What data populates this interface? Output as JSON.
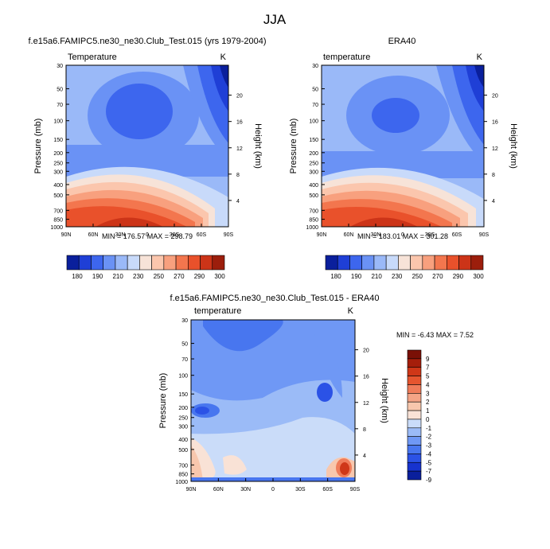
{
  "page_title": "JJA",
  "colors": {
    "temp_levels": [
      "#0a1f9c",
      "#1f3fd6",
      "#3d66ee",
      "#6a92f5",
      "#9ab9f8",
      "#c8dafa",
      "#f7e3d8",
      "#fbc6ad",
      "#f8a07e",
      "#f3764e",
      "#e9512b",
      "#cc3418",
      "#9c1e0c"
    ],
    "diff_levels": [
      "#0a1f9c",
      "#1733cf",
      "#2b52e6",
      "#4876ef",
      "#6f98f5",
      "#9bbbf7",
      "#cadcf9",
      "#f9e2d6",
      "#f8c7ad",
      "#f4a486",
      "#ef7c5a",
      "#e5552f",
      "#cf3718",
      "#a51e0b",
      "#7a1006"
    ]
  },
  "chart_data": [
    {
      "type": "heatmap",
      "title": "f.e15a6.FAMIPC5.ne30_ne30.Club_Test.015 (yrs 1979-2004)",
      "left_label": "Temperature",
      "right_label": "K",
      "ylabel": "Pressure (mb)",
      "ylabel_right": "Height (km)",
      "x_ticks": [
        "90N",
        "60N",
        "30N",
        "0",
        "30S",
        "60S",
        "90S"
      ],
      "y_ticks": [
        "30",
        "50",
        "70",
        "100",
        "150",
        "200",
        "250",
        "300",
        "400",
        "500",
        "700",
        "850",
        "1000"
      ],
      "height_ticks": [
        "20",
        "16",
        "12",
        "8",
        "4"
      ],
      "min_max": "MIN = 176.57   MAX = 298.79",
      "colorbar_labels": [
        "180",
        "190",
        "210",
        "230",
        "250",
        "270",
        "290",
        "300"
      ],
      "minmax_text": {
        "min": 176.57,
        "max": 298.79
      }
    },
    {
      "type": "heatmap",
      "title": "ERA40",
      "left_label": "temperature",
      "right_label": "K",
      "ylabel": "Pressure (mb)",
      "ylabel_right": "Height (km)",
      "x_ticks": [
        "90N",
        "60N",
        "30N",
        "0",
        "30S",
        "60S",
        "90S"
      ],
      "y_ticks": [
        "30",
        "50",
        "70",
        "100",
        "150",
        "200",
        "250",
        "300",
        "400",
        "500",
        "700",
        "850",
        "1000"
      ],
      "height_ticks": [
        "20",
        "16",
        "12",
        "8",
        "4"
      ],
      "min_max": "MIN = 183.01   MAX = 301.28",
      "colorbar_labels": [
        "180",
        "190",
        "210",
        "230",
        "250",
        "270",
        "290",
        "300"
      ],
      "minmax_text": {
        "min": 183.01,
        "max": 301.28
      }
    },
    {
      "type": "heatmap",
      "title": "f.e15a6.FAMIPC5.ne30_ne30.Club_Test.015 - ERA40",
      "left_label": "temperature",
      "right_label": "K",
      "ylabel": "Pressure (mb)",
      "ylabel_right": "Height (km)",
      "x_ticks": [
        "90N",
        "60N",
        "30N",
        "0",
        "30S",
        "60S",
        "90S"
      ],
      "y_ticks": [
        "30",
        "50",
        "70",
        "100",
        "150",
        "200",
        "250",
        "300",
        "400",
        "500",
        "700",
        "850",
        "1000"
      ],
      "height_ticks": [
        "20",
        "16",
        "12",
        "8",
        "4"
      ],
      "min_max": "MIN =  -6.43   MAX =   7.52",
      "colorbar_labels": [
        "9",
        "7",
        "5",
        "4",
        "3",
        "2",
        "1",
        "0",
        "-1",
        "-2",
        "-3",
        "-4",
        "-5",
        "-7",
        "-9"
      ],
      "minmax_text": {
        "min": -6.43,
        "max": 7.52
      }
    }
  ]
}
